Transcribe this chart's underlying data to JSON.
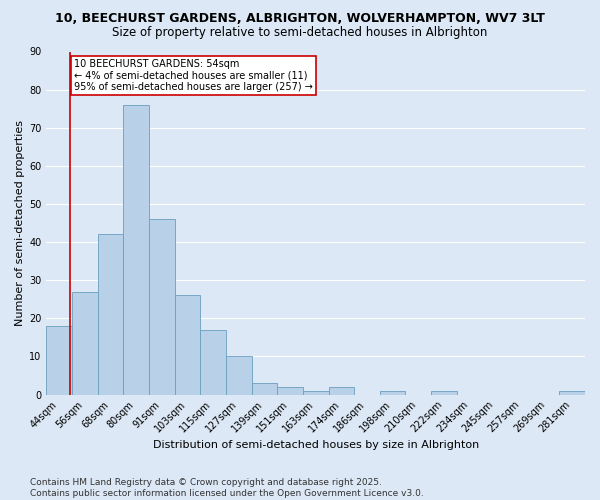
{
  "title1": "10, BEECHURST GARDENS, ALBRIGHTON, WOLVERHAMPTON, WV7 3LT",
  "title2": "Size of property relative to semi-detached houses in Albrighton",
  "xlabel": "Distribution of semi-detached houses by size in Albrighton",
  "ylabel": "Number of semi-detached properties",
  "categories": [
    "44sqm",
    "56sqm",
    "68sqm",
    "80sqm",
    "91sqm",
    "103sqm",
    "115sqm",
    "127sqm",
    "139sqm",
    "151sqm",
    "163sqm",
    "174sqm",
    "186sqm",
    "198sqm",
    "210sqm",
    "222sqm",
    "234sqm",
    "245sqm",
    "257sqm",
    "269sqm",
    "281sqm"
  ],
  "values": [
    18,
    27,
    42,
    76,
    46,
    26,
    17,
    10,
    3,
    2,
    1,
    2,
    0,
    1,
    0,
    1,
    0,
    0,
    0,
    0,
    1
  ],
  "bar_color": "#b8d0e8",
  "bar_edge_color": "#6a9fc0",
  "annotation_line": "10 BEECHURST GARDENS: 54sqm",
  "annotation_smaller": "← 4% of semi-detached houses are smaller (11)",
  "annotation_larger": "95% of semi-detached houses are larger (257) →",
  "annotation_box_color": "#cc0000",
  "ylim": [
    0,
    90
  ],
  "yticks": [
    0,
    10,
    20,
    30,
    40,
    50,
    60,
    70,
    80,
    90
  ],
  "footer1": "Contains HM Land Registry data © Crown copyright and database right 2025.",
  "footer2": "Contains public sector information licensed under the Open Government Licence v3.0.",
  "bg_color": "#dce8f5",
  "plot_bg_color": "#dce8f5",
  "grid_color": "#ffffff",
  "title1_fontsize": 9,
  "title2_fontsize": 8.5,
  "xlabel_fontsize": 8,
  "ylabel_fontsize": 8,
  "tick_fontsize": 7,
  "annot_fontsize": 7,
  "footer_fontsize": 6.5
}
